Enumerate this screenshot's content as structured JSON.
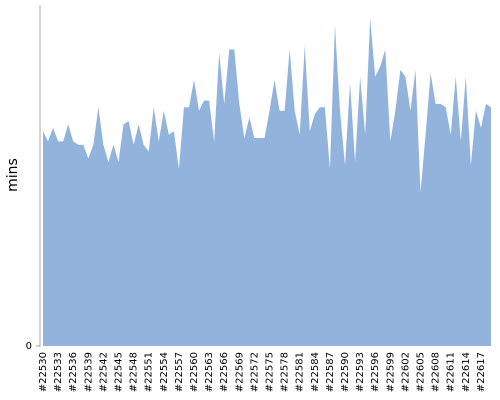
{
  "chart_data": {
    "type": "area",
    "y_label": "mins",
    "color": "#92b4dc",
    "categories": [
      "#22530",
      null,
      null,
      "#22533",
      null,
      null,
      "#22536",
      null,
      null,
      "#22539",
      null,
      null,
      "#22542",
      null,
      null,
      "#22545",
      null,
      null,
      "#22548",
      null,
      null,
      "#22551",
      null,
      null,
      "#22554",
      null,
      null,
      "#22557",
      null,
      null,
      "#22560",
      null,
      null,
      "#22563",
      null,
      null,
      "#22566",
      null,
      null,
      "#22569",
      null,
      null,
      "#22572",
      null,
      null,
      "#22575",
      null,
      null,
      "#22578",
      null,
      null,
      "#22581",
      null,
      null,
      "#22584",
      null,
      null,
      "#22587",
      null,
      null,
      "#22590",
      null,
      null,
      "#22593",
      null,
      null,
      "#22596",
      null,
      null,
      "#22599",
      null,
      null,
      "#22602",
      null,
      null,
      "#22605",
      null,
      null,
      "#22608",
      null,
      null,
      "#22611",
      null,
      null,
      "#22614",
      null,
      null,
      "#22617",
      null,
      null
    ],
    "values": [
      63,
      60,
      64,
      60,
      60,
      65,
      60,
      59,
      59,
      55,
      59,
      70,
      59,
      54,
      59,
      54,
      65,
      66,
      59,
      65,
      59,
      57,
      70,
      60,
      69,
      62,
      63,
      52,
      70,
      70,
      78,
      69,
      72,
      72,
      60,
      86,
      71,
      87,
      87,
      71,
      61,
      67,
      61,
      61,
      61,
      69,
      78,
      69,
      69,
      87,
      69,
      62,
      88,
      63,
      68,
      70,
      70,
      52,
      94,
      69,
      53,
      77,
      54,
      79,
      62,
      96,
      79,
      82,
      87,
      60,
      69,
      81,
      79,
      69,
      81,
      45,
      62,
      80,
      71,
      71,
      70,
      62,
      79,
      60,
      79,
      53,
      69,
      64,
      71,
      70
    ],
    "ylim": [
      0,
      100
    ],
    "yticks": [
      0
    ]
  }
}
